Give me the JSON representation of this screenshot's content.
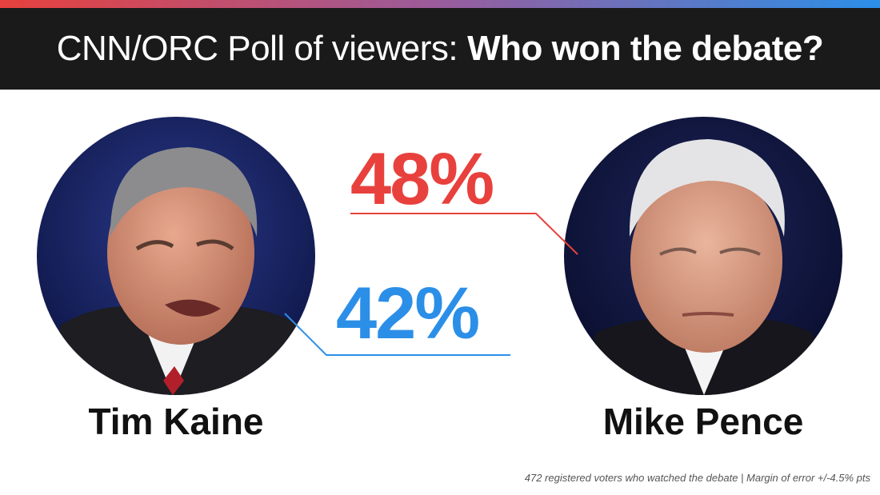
{
  "header": {
    "title_light": "CNN/ORC Poll of viewers:",
    "title_bold": "Who won the debate?"
  },
  "candidates": {
    "kaine": {
      "name": "Tim Kaine",
      "percent_label": "42%"
    },
    "pence": {
      "name": "Mike Pence",
      "percent_label": "48%"
    }
  },
  "footnote": "472 registered voters who watched the debate | Margin of error +/-4.5% pts",
  "colors": {
    "pence_red": "#e8413d",
    "kaine_blue": "#2b8fe8",
    "header_bg": "#1a1a1a"
  },
  "chart_data": {
    "type": "table",
    "title": "CNN/ORC Poll of viewers: Who won the debate?",
    "categories": [
      "Tim Kaine",
      "Mike Pence"
    ],
    "values": [
      42,
      48
    ],
    "unit": "%",
    "footnote": "472 registered voters who watched the debate | Margin of error +/-4.5% pts"
  }
}
